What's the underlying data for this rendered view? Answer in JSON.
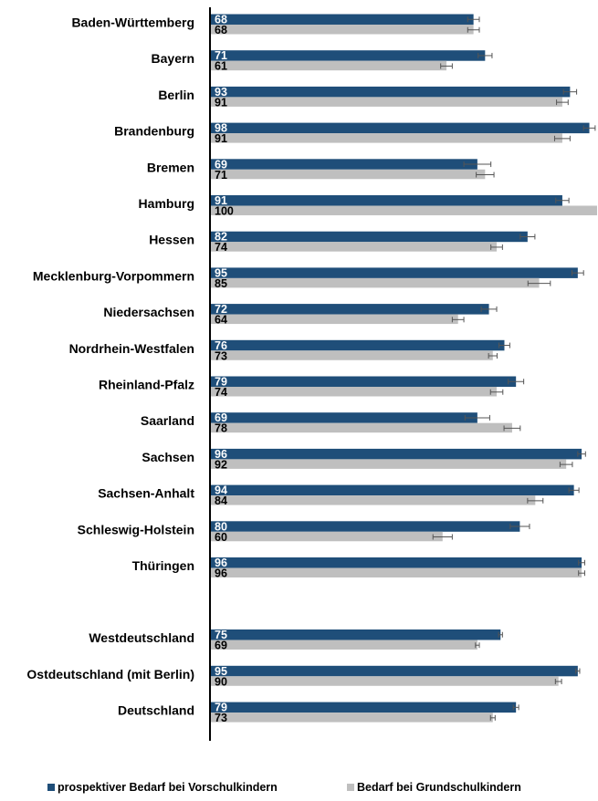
{
  "colors": {
    "series1": "#1f4e79",
    "series2": "#bfbfbf",
    "axis": "#000000",
    "errorbar": "#555555"
  },
  "chart_data": {
    "type": "bar",
    "orientation": "horizontal",
    "title": "",
    "xlabel": "",
    "ylabel": "",
    "xlim": [
      0,
      100
    ],
    "grid": false,
    "legend_position": "bottom",
    "error_bars": true,
    "categories": [
      "Baden-Württemberg",
      "Bayern",
      "Berlin",
      "Brandenburg",
      "Bremen",
      "Hamburg",
      "Hessen",
      "Mecklenburg-Vorpommern",
      "Niedersachsen",
      "Nordrhein-Westfalen",
      "Rheinland-Pfalz",
      "Saarland",
      "Sachsen",
      "Sachsen-Anhalt",
      "Schleswig-Holstein",
      "Thüringen",
      "Westdeutschland",
      "Ostdeutschland (mit Berlin)",
      "Deutschland"
    ],
    "series": [
      {
        "name": "prospektiver Bedarf bei Vorschulkindern",
        "values": [
          68,
          71,
          93,
          98,
          69,
          91,
          82,
          95,
          72,
          76,
          79,
          69,
          96,
          94,
          80,
          96,
          75,
          95,
          79
        ],
        "error": [
          1.5,
          1.8,
          1.7,
          1.5,
          3.5,
          1.7,
          1.9,
          1.5,
          2.0,
          1.4,
          2.0,
          3.2,
          1.0,
          1.3,
          2.5,
          0.8,
          0.5,
          0.5,
          0.7
        ]
      },
      {
        "name": "Bedarf bei Grundschulkindern",
        "values": [
          68,
          61,
          91,
          91,
          71,
          100,
          74,
          85,
          64,
          73,
          74,
          78,
          92,
          84,
          60,
          96,
          69,
          90,
          73
        ],
        "error": [
          1.5,
          1.5,
          1.5,
          2.0,
          2.3,
          0.0,
          1.5,
          2.9,
          1.5,
          1.1,
          1.6,
          2.1,
          1.6,
          2.0,
          2.5,
          0.8,
          0.5,
          0.8,
          0.6
        ]
      }
    ]
  }
}
